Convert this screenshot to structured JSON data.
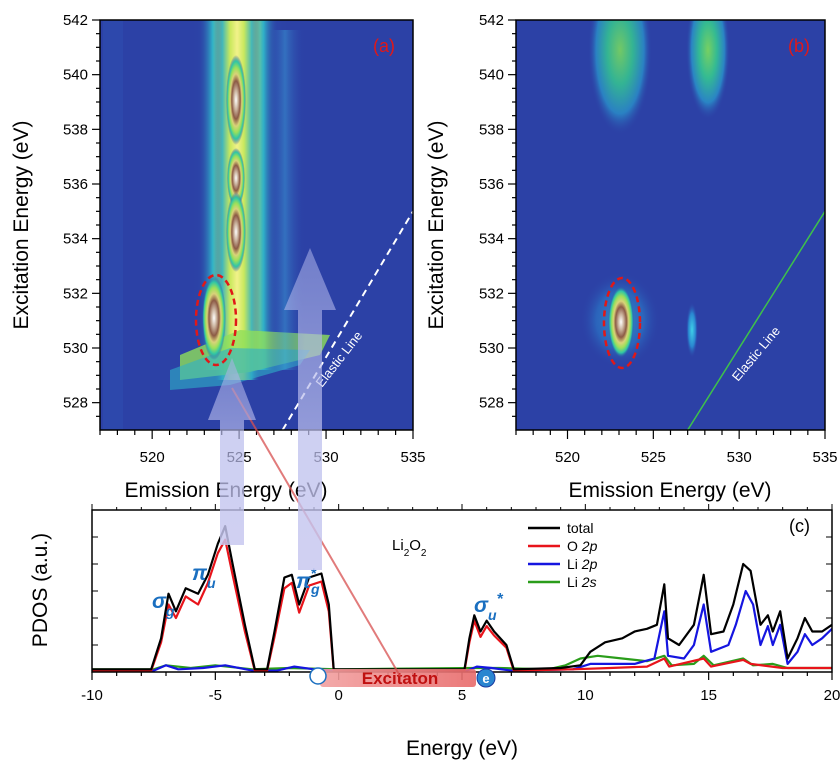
{
  "chart_data": [
    {
      "type": "heatmap",
      "panel_label": "(a)",
      "xlabel": "Emission Energy (eV)",
      "ylabel": "Excitation Energy (eV)",
      "xlim": [
        517,
        535
      ],
      "ylim": [
        527,
        542
      ],
      "xticks": [
        "520",
        "525",
        "530",
        "535"
      ],
      "yticks": [
        "528",
        "530",
        "532",
        "534",
        "536",
        "538",
        "540",
        "542"
      ],
      "annotation": "Elastic Line",
      "elastic_line": [
        [
          527.5,
          527.0
        ],
        [
          535.0,
          535.0
        ]
      ],
      "features": [
        {
          "emission": 523.7,
          "excitation": 530.8,
          "intensity": 1.0
        },
        {
          "emission": 525.0,
          "excitation": 533.8,
          "intensity": 1.0
        },
        {
          "emission": 525.0,
          "excitation": 536.5,
          "intensity": 0.85
        },
        {
          "emission": 525.0,
          "excitation": 539.5,
          "intensity": 0.85
        }
      ],
      "highlight_ellipse": {
        "emission": 523.7,
        "excitation": 530.8
      }
    },
    {
      "type": "heatmap",
      "panel_label": "(b)",
      "xlabel": "Emission Energy (eV)",
      "ylabel": "Excitation Energy (eV)",
      "xlim": [
        517,
        535
      ],
      "ylim": [
        527,
        542
      ],
      "xticks": [
        "520",
        "525",
        "530",
        "535"
      ],
      "yticks": [
        "528",
        "530",
        "532",
        "534",
        "536",
        "538",
        "540",
        "542"
      ],
      "annotation": "Elastic Line",
      "elastic_line": [
        [
          527.0,
          527.0
        ],
        [
          535.0,
          535.0
        ]
      ],
      "features": [
        {
          "emission": 523.2,
          "excitation": 530.9,
          "intensity": 1.0
        },
        {
          "emission": 527.7,
          "excitation": 530.5,
          "intensity": 0.3
        },
        {
          "emission": 524.2,
          "excitation": 540.0,
          "intensity": 0.45
        },
        {
          "emission": 528.0,
          "excitation": 540.0,
          "intensity": 0.45
        }
      ],
      "highlight_ellipse": {
        "emission": 523.2,
        "excitation": 530.9
      }
    },
    {
      "type": "line",
      "panel_label": "(c)",
      "compound": "Li2O2",
      "xlabel": "Energy (eV)",
      "ylabel": "PDOS (a.u.)",
      "xlim": [
        -10,
        20
      ],
      "ylim": [
        0,
        1.2
      ],
      "xticks": [
        "-10",
        "-5",
        "0",
        "5",
        "10",
        "15",
        "20"
      ],
      "legend_position": "top-right",
      "state_labels": [
        "σg",
        "πu",
        "π*g",
        "σu*"
      ],
      "excitaton_label": "Excitaton",
      "electron_label": "e",
      "series": [
        {
          "name": "total",
          "color": "#000000",
          "points": [
            [
              -10,
              0.02
            ],
            [
              -7.6,
              0.02
            ],
            [
              -7.2,
              0.25
            ],
            [
              -6.9,
              0.58
            ],
            [
              -6.6,
              0.45
            ],
            [
              -6.2,
              0.62
            ],
            [
              -5.7,
              0.58
            ],
            [
              -5.3,
              0.72
            ],
            [
              -4.9,
              0.95
            ],
            [
              -4.6,
              1.08
            ],
            [
              -4.3,
              0.8
            ],
            [
              -3.8,
              0.35
            ],
            [
              -3.4,
              0.02
            ],
            [
              -2.9,
              0.02
            ],
            [
              -2.6,
              0.3
            ],
            [
              -2.2,
              0.7
            ],
            [
              -1.9,
              0.72
            ],
            [
              -1.6,
              0.5
            ],
            [
              -1.2,
              0.7
            ],
            [
              -0.7,
              0.73
            ],
            [
              -0.4,
              0.5
            ],
            [
              -0.2,
              0.02
            ],
            [
              5.1,
              0.02
            ],
            [
              5.3,
              0.25
            ],
            [
              5.5,
              0.42
            ],
            [
              5.75,
              0.3
            ],
            [
              6.0,
              0.38
            ],
            [
              6.3,
              0.3
            ],
            [
              6.8,
              0.2
            ],
            [
              7.1,
              0.02
            ],
            [
              9.0,
              0.03
            ],
            [
              9.8,
              0.05
            ],
            [
              10.2,
              0.15
            ],
            [
              10.8,
              0.22
            ],
            [
              11.5,
              0.25
            ],
            [
              12.0,
              0.3
            ],
            [
              12.5,
              0.32
            ],
            [
              12.9,
              0.35
            ],
            [
              13.2,
              0.65
            ],
            [
              13.35,
              0.25
            ],
            [
              13.8,
              0.2
            ],
            [
              14.4,
              0.35
            ],
            [
              14.8,
              0.72
            ],
            [
              15.1,
              0.28
            ],
            [
              15.6,
              0.3
            ],
            [
              16.0,
              0.5
            ],
            [
              16.4,
              0.8
            ],
            [
              16.7,
              0.75
            ],
            [
              17.1,
              0.35
            ],
            [
              17.4,
              0.42
            ],
            [
              17.6,
              0.3
            ],
            [
              17.9,
              0.45
            ],
            [
              18.2,
              0.1
            ],
            [
              18.6,
              0.25
            ],
            [
              18.9,
              0.4
            ],
            [
              19.2,
              0.3
            ],
            [
              19.6,
              0.3
            ],
            [
              20.0,
              0.35
            ]
          ]
        },
        {
          "name": "O 2p",
          "color": "#e8141b",
          "points": [
            [
              -10,
              0.01
            ],
            [
              -7.6,
              0.01
            ],
            [
              -7.2,
              0.22
            ],
            [
              -6.9,
              0.5
            ],
            [
              -6.6,
              0.4
            ],
            [
              -6.2,
              0.56
            ],
            [
              -5.7,
              0.5
            ],
            [
              -5.3,
              0.66
            ],
            [
              -4.9,
              0.88
            ],
            [
              -4.6,
              0.98
            ],
            [
              -4.3,
              0.72
            ],
            [
              -3.8,
              0.3
            ],
            [
              -3.4,
              0.01
            ],
            [
              -2.9,
              0.01
            ],
            [
              -2.6,
              0.26
            ],
            [
              -2.2,
              0.62
            ],
            [
              -1.9,
              0.66
            ],
            [
              -1.6,
              0.44
            ],
            [
              -1.2,
              0.64
            ],
            [
              -0.7,
              0.67
            ],
            [
              -0.4,
              0.45
            ],
            [
              -0.2,
              0.01
            ],
            [
              5.1,
              0.01
            ],
            [
              5.3,
              0.22
            ],
            [
              5.5,
              0.38
            ],
            [
              5.75,
              0.26
            ],
            [
              6.0,
              0.34
            ],
            [
              6.3,
              0.27
            ],
            [
              6.8,
              0.18
            ],
            [
              7.1,
              0.01
            ],
            [
              9.5,
              0.02
            ],
            [
              11.0,
              0.03
            ],
            [
              12.5,
              0.04
            ],
            [
              13.2,
              0.1
            ],
            [
              13.4,
              0.04
            ],
            [
              14.8,
              0.1
            ],
            [
              15.1,
              0.04
            ],
            [
              16.4,
              0.09
            ],
            [
              16.7,
              0.06
            ],
            [
              18.0,
              0.03
            ],
            [
              20.0,
              0.03
            ]
          ]
        },
        {
          "name": "Li 2p",
          "color": "#1515e0",
          "points": [
            [
              -10,
              0.01
            ],
            [
              -7.5,
              0.01
            ],
            [
              -7.0,
              0.05
            ],
            [
              -6.5,
              0.02
            ],
            [
              -5.5,
              0.03
            ],
            [
              -4.6,
              0.05
            ],
            [
              -3.5,
              0.01
            ],
            [
              -2.5,
              0.01
            ],
            [
              -1.8,
              0.04
            ],
            [
              -1.0,
              0.02
            ],
            [
              0,
              0.01
            ],
            [
              5.2,
              0.01
            ],
            [
              5.6,
              0.04
            ],
            [
              6.2,
              0.03
            ],
            [
              7.0,
              0.01
            ],
            [
              9.5,
              0.02
            ],
            [
              10.2,
              0.06
            ],
            [
              11.0,
              0.06
            ],
            [
              12.0,
              0.06
            ],
            [
              12.8,
              0.1
            ],
            [
              13.2,
              0.45
            ],
            [
              13.35,
              0.12
            ],
            [
              14.0,
              0.1
            ],
            [
              14.4,
              0.2
            ],
            [
              14.8,
              0.5
            ],
            [
              15.1,
              0.15
            ],
            [
              15.8,
              0.2
            ],
            [
              16.1,
              0.35
            ],
            [
              16.5,
              0.6
            ],
            [
              16.8,
              0.5
            ],
            [
              17.1,
              0.2
            ],
            [
              17.4,
              0.34
            ],
            [
              17.6,
              0.2
            ],
            [
              17.9,
              0.35
            ],
            [
              18.2,
              0.06
            ],
            [
              18.6,
              0.15
            ],
            [
              18.9,
              0.28
            ],
            [
              19.2,
              0.2
            ],
            [
              19.6,
              0.25
            ],
            [
              20.0,
              0.32
            ]
          ]
        },
        {
          "name": "Li 2s",
          "color": "#2a9d1a",
          "points": [
            [
              -10,
              0.02
            ],
            [
              -7.5,
              0.02
            ],
            [
              -7.0,
              0.05
            ],
            [
              -6.0,
              0.03
            ],
            [
              -5.0,
              0.05
            ],
            [
              -3.5,
              0.02
            ],
            [
              -2.0,
              0.03
            ],
            [
              0,
              0.02
            ],
            [
              5.5,
              0.03
            ],
            [
              6.5,
              0.03
            ],
            [
              8.5,
              0.02
            ],
            [
              9.2,
              0.05
            ],
            [
              9.8,
              0.1
            ],
            [
              10.5,
              0.12
            ],
            [
              11.5,
              0.1
            ],
            [
              12.5,
              0.08
            ],
            [
              13.2,
              0.12
            ],
            [
              13.5,
              0.05
            ],
            [
              14.4,
              0.06
            ],
            [
              14.8,
              0.12
            ],
            [
              15.2,
              0.05
            ],
            [
              16.4,
              0.1
            ],
            [
              16.8,
              0.05
            ],
            [
              17.6,
              0.06
            ],
            [
              18.2,
              0.03
            ],
            [
              20.0,
              0.03
            ]
          ]
        }
      ]
    }
  ]
}
